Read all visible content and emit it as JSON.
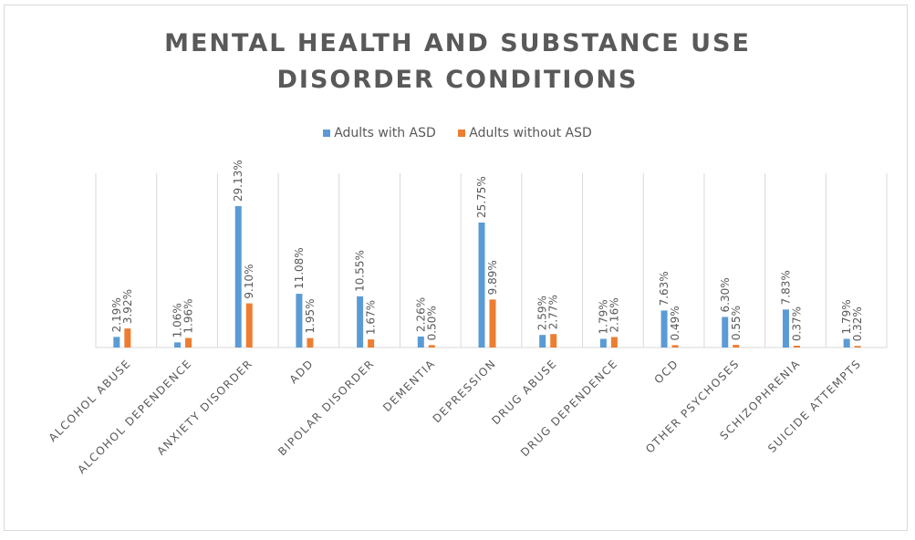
{
  "chart_data": {
    "type": "bar",
    "title": "MENTAL HEALTH AND SUBSTANCE USE DISORDER CONDITIONS",
    "title_lines": [
      "MENTAL HEALTH AND SUBSTANCE USE",
      "DISORDER CONDITIONS"
    ],
    "xlabel": "",
    "ylabel": "",
    "ylim": [
      0,
      30
    ],
    "grid": "vertical category separators",
    "legend_position": "top",
    "categories": [
      "ALCOHOL ABUSE",
      "ALCOHOL DEPENDENCE",
      "ANXIETY DISORDER",
      "ADD",
      "BIPOLAR DISORDER",
      "DEMENTIA",
      "DEPRESSION",
      "DRUG ABUSE",
      "DRUG DEPENDENCE",
      "OCD",
      "OTHER PSYCHOSES",
      "SCHIZOPHRENIA",
      "SUICIDE ATTEMPTS"
    ],
    "series": [
      {
        "name": "Adults with ASD",
        "color": "#5b9bd5",
        "values": [
          2.19,
          1.06,
          29.13,
          11.08,
          10.55,
          2.26,
          25.75,
          2.59,
          1.79,
          7.63,
          6.3,
          7.83,
          1.79
        ],
        "labels": [
          "2.19%",
          "1.06%",
          "29.13%",
          "11.08%",
          "10.55%",
          "2.26%",
          "25.75%",
          "2.59%",
          "1.79%",
          "7.63%",
          "6.30%",
          "7.83%",
          "1.79%"
        ]
      },
      {
        "name": "Adults without ASD",
        "color": "#ed7d31",
        "values": [
          3.92,
          1.96,
          9.1,
          1.95,
          1.67,
          0.5,
          9.89,
          2.77,
          2.16,
          0.49,
          0.55,
          0.37,
          0.32
        ],
        "labels": [
          "3.92%",
          "1.96%",
          "9.10%",
          "1.95%",
          "1.67%",
          "0.50%",
          "9.89%",
          "2.77%",
          "2.16%",
          "0.49%",
          "0.55%",
          "0.37%",
          "0.32%"
        ]
      }
    ]
  },
  "colors": {
    "text": "#595959",
    "gridline": "#d9d9d9",
    "border": "#d9d9d9"
  }
}
